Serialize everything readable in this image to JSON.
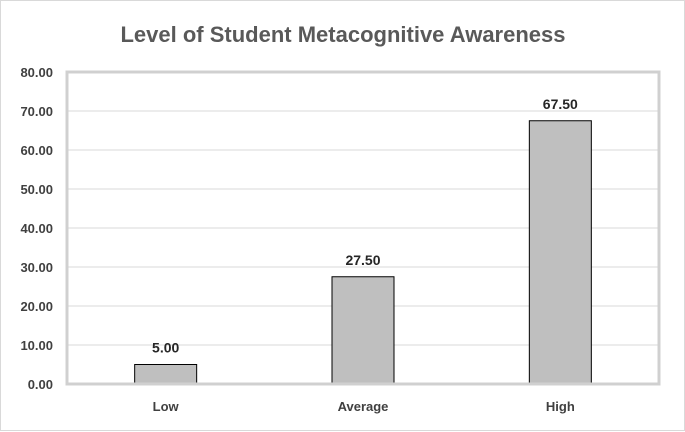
{
  "chart_data": {
    "type": "bar",
    "title": "Level of Student Metacognitive Awareness",
    "xlabel": "",
    "ylabel": "",
    "categories": [
      "Low",
      "Average",
      "High"
    ],
    "values": [
      5.0,
      27.5,
      67.5
    ],
    "data_labels": [
      "5.00",
      "27.50",
      "67.50"
    ],
    "ylim": [
      0,
      80
    ],
    "yticks": [
      0,
      10,
      20,
      30,
      40,
      50,
      60,
      70,
      80
    ],
    "ytick_labels": [
      "0.00",
      "10.00",
      "20.00",
      "30.00",
      "40.00",
      "50.00",
      "60.00",
      "70.00",
      "80.00"
    ],
    "grid": true,
    "legend": "none",
    "bar_color": "#bfbfbf",
    "bar_edge_color": "#000000"
  }
}
